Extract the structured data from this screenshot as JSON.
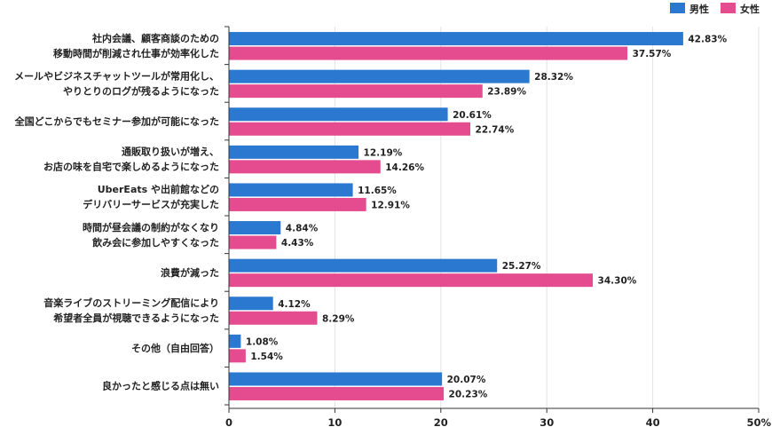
{
  "chart_data": {
    "type": "bar",
    "orientation": "horizontal",
    "categories": [
      [
        "社内会議、顧客商談のための",
        "移動時間が削減され仕事が効率化した"
      ],
      [
        "メールやビジネスチャットツールが常用化し、",
        "やりとりのログが残るようになった"
      ],
      [
        "全国どこからでもセミナー参加が可能になった"
      ],
      [
        "通販取り扱いが増え、",
        "お店の味を自宅で楽しめるようになった"
      ],
      [
        "UberEats や出前館などの",
        "デリバリーサービスが充実した"
      ],
      [
        "時間が昼会議の制約がなくなり",
        "飲み会に参加しやすくなった"
      ],
      [
        "浪費が減った"
      ],
      [
        "音楽ライブのストリーミング配信により",
        "希望者全員が視聴できるようになった"
      ],
      [
        "その他（自由回答）"
      ],
      [
        "良かったと感じる点は無い"
      ]
    ],
    "series": [
      {
        "name": "男性",
        "color": "#2b78d0",
        "values": [
          42.83,
          28.32,
          20.61,
          12.19,
          11.65,
          4.84,
          25.27,
          4.12,
          1.08,
          20.07
        ],
        "labels": [
          "42.83%",
          "28.32%",
          "20.61%",
          "12.19%",
          "11.65%",
          "4.84%",
          "25.27%",
          "4.12%",
          "1.08%",
          "20.07%"
        ]
      },
      {
        "name": "女性",
        "color": "#e54b8f",
        "values": [
          37.57,
          23.89,
          22.74,
          14.26,
          12.91,
          4.43,
          34.3,
          8.29,
          1.54,
          20.23
        ],
        "labels": [
          "37.57%",
          "23.89%",
          "22.74%",
          "14.26%",
          "12.91%",
          "4.43%",
          "34.30%",
          "8.29%",
          "1.54%",
          "20.23%"
        ]
      }
    ],
    "xlim": [
      0,
      50
    ],
    "xticks": [
      0,
      10,
      20,
      30,
      40,
      50
    ],
    "xtick_labels": [
      "0",
      "10",
      "20",
      "30",
      "40",
      "50%"
    ],
    "grid": true,
    "legend_position": "top-right",
    "gridline_color": "#e3e3e3",
    "axis_color": "#333333"
  }
}
